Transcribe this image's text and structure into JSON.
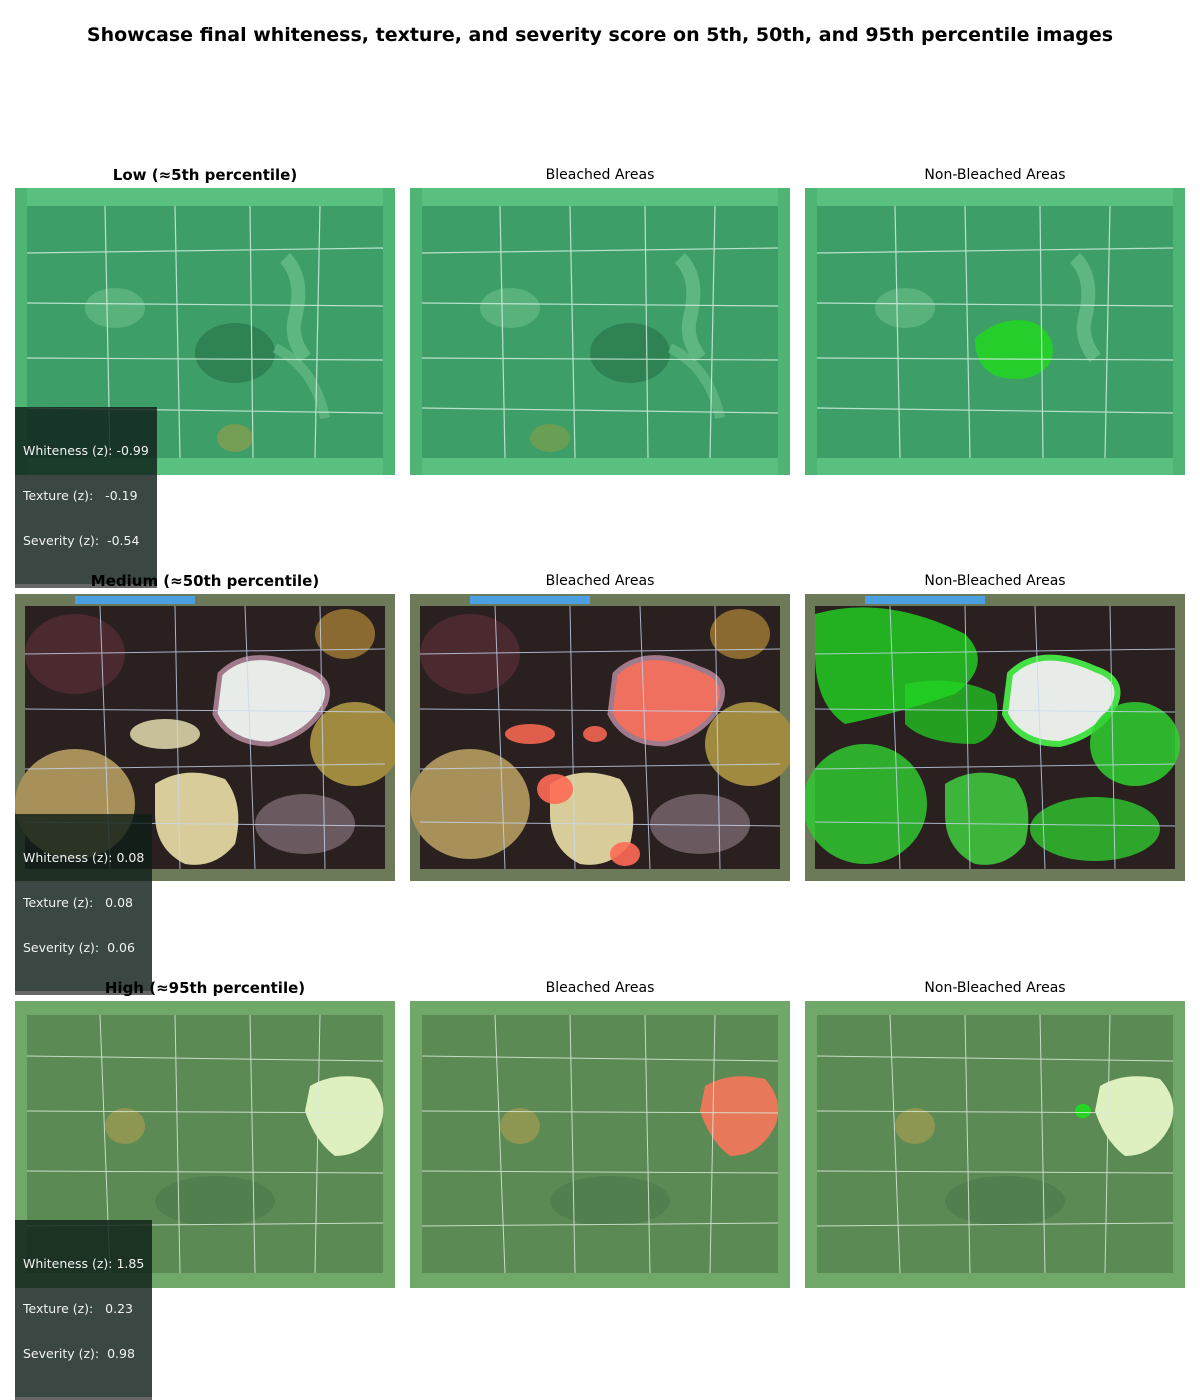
{
  "figure": {
    "title": "Showcase final whiteness, texture, and severity score on 5th, 50th, and 95th percentile images"
  },
  "columns": {
    "bleached": "Bleached Areas",
    "non_bleached": "Non-Bleached Areas"
  },
  "rows": [
    {
      "label": "Low (≈5th percentile)",
      "scores": {
        "whiteness": "Whiteness (z): -0.99",
        "texture": "Texture (z):   -0.19",
        "severity": "Severity (z):  -0.54"
      }
    },
    {
      "label": "Medium (≈50th percentile)",
      "scores": {
        "whiteness": "Whiteness (z): 0.08",
        "texture": "Texture (z):   0.08",
        "severity": "Severity (z):  0.06"
      }
    },
    {
      "label": "High (≈95th percentile)",
      "scores": {
        "whiteness": "Whiteness (z): 1.85",
        "texture": "Texture (z):   0.23",
        "severity": "Severity (z):  0.98"
      }
    }
  ],
  "colors": {
    "bleached_overlay": "#ff6a55",
    "non_bleached_overlay": "#22d622",
    "low_water": "#3fa46a",
    "medium_reef": "#2a2020",
    "high_water": "#5c8a55"
  }
}
